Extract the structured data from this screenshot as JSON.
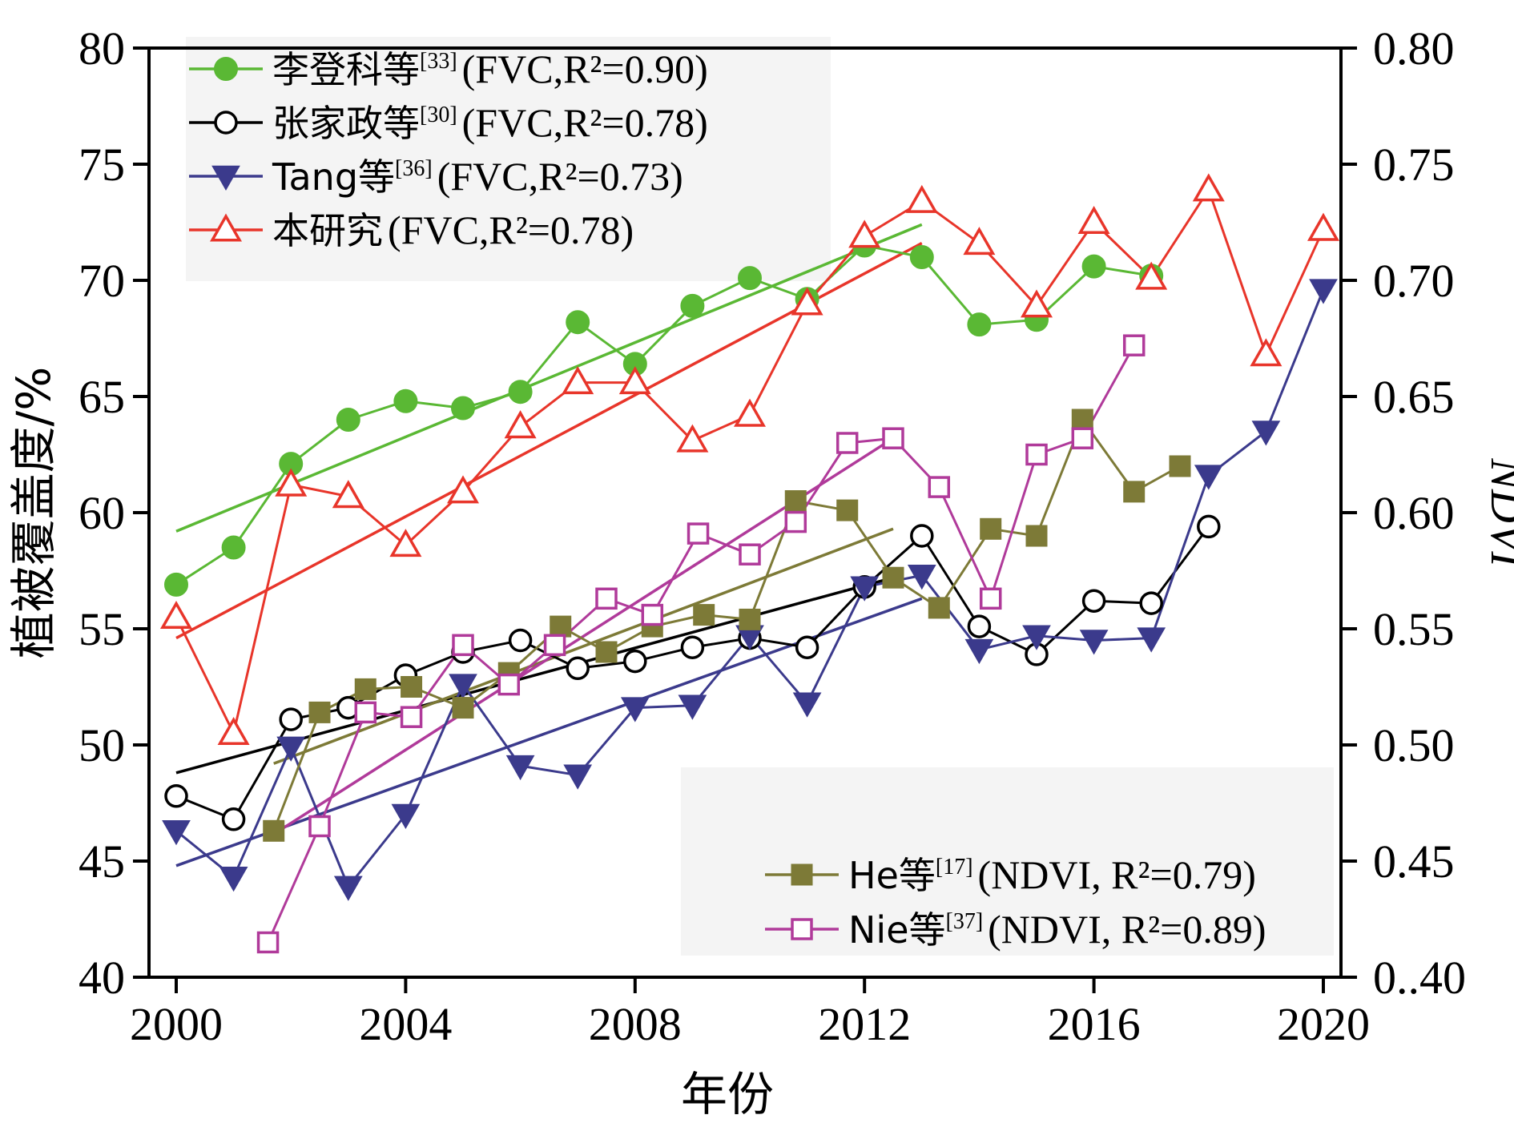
{
  "chart_data": {
    "type": "line",
    "xlabel": "年份",
    "ylabel_left": "植被覆盖度/%",
    "ylabel_right": "NDVI",
    "xlim": [
      2000,
      2020
    ],
    "ylim_left": [
      40,
      80
    ],
    "ylim_right": [
      0.4,
      0.8
    ],
    "x_ticks": [
      "2000",
      "2004",
      "2008",
      "2012",
      "2016",
      "2020"
    ],
    "y_ticks_left": [
      "40",
      "45",
      "50",
      "55",
      "60",
      "65",
      "70",
      "75",
      "80"
    ],
    "y_ticks_right": [
      "0..40",
      "0.45",
      "0.50",
      "0.55",
      "0.60",
      "0.65",
      "0.70",
      "0.75",
      "0.80"
    ],
    "grid": false,
    "legend_top_left": true,
    "legend_bottom_right": true,
    "series": [
      {
        "id": "li",
        "name_cjk": "李登科等",
        "ref": "[33]",
        "stat": "(FVC,R²=0.90)",
        "axis": "left",
        "color": "#5ab834",
        "marker": "circle-filled",
        "x": [
          2000,
          2001,
          2002,
          2003,
          2004,
          2005,
          2006,
          2007,
          2008,
          2009,
          2010,
          2011,
          2012,
          2013,
          2014,
          2015,
          2016,
          2017
        ],
        "values": [
          56.9,
          58.5,
          62.1,
          64.0,
          64.8,
          64.5,
          65.2,
          68.2,
          66.4,
          68.9,
          70.1,
          69.2,
          71.5,
          71.0,
          68.1,
          68.3,
          70.6,
          70.2
        ],
        "trend_x": [
          2000,
          2013
        ],
        "trend_y": [
          59.2,
          72.4
        ]
      },
      {
        "id": "zhang",
        "name_cjk": "张家政等",
        "ref": "[30]",
        "stat": "(FVC,R²=0.78)",
        "axis": "left",
        "color": "#000000",
        "marker": "circle-open",
        "x": [
          2000,
          2001,
          2002,
          2003,
          2004,
          2005,
          2006,
          2007,
          2008,
          2009,
          2010,
          2011,
          2012,
          2013,
          2014,
          2015,
          2016,
          2017,
          2018
        ],
        "values": [
          47.8,
          46.8,
          51.1,
          51.6,
          53.0,
          54.0,
          54.5,
          53.3,
          53.6,
          54.2,
          54.6,
          54.2,
          56.8,
          59.0,
          55.1,
          53.9,
          56.2,
          56.1,
          59.4
        ],
        "trend_x": [
          2000,
          2012.5
        ],
        "trend_y": [
          48.8,
          57.2
        ]
      },
      {
        "id": "tang",
        "name_cjk": "Tang等",
        "ref": "[36]",
        "stat": "(FVC,R²=0.73)",
        "axis": "left",
        "color": "#3b3a8c",
        "marker": "triangle-down-filled",
        "x": [
          2000,
          2001,
          2002,
          2003,
          2004,
          2005,
          2006,
          2007,
          2008,
          2009,
          2010,
          2011,
          2012,
          2013,
          2014,
          2015,
          2016,
          2017,
          2018,
          2019,
          2020
        ],
        "values": [
          46.3,
          44.3,
          49.9,
          43.9,
          47.0,
          52.6,
          49.1,
          48.7,
          51.6,
          51.7,
          54.7,
          51.8,
          56.8,
          57.3,
          54.1,
          54.7,
          54.5,
          54.6,
          61.6,
          63.5,
          69.6
        ],
        "trend_x": [
          2000,
          2013
        ],
        "trend_y": [
          44.8,
          56.3
        ]
      },
      {
        "id": "ben",
        "name_cjk": "本研究",
        "ref": "",
        "stat": "(FVC,R²=0.78)",
        "axis": "left",
        "color": "#e8352a",
        "marker": "triangle-up-open",
        "x": [
          2000,
          2001,
          2002,
          2003,
          2004,
          2005,
          2006,
          2007,
          2008,
          2009,
          2010,
          2011,
          2012,
          2013,
          2014,
          2015,
          2016,
          2017,
          2018,
          2019,
          2020
        ],
        "values": [
          55.5,
          50.5,
          61.2,
          60.7,
          58.6,
          60.9,
          63.7,
          65.6,
          65.6,
          63.1,
          64.2,
          69.0,
          71.9,
          73.4,
          71.6,
          68.9,
          72.5,
          70.1,
          73.9,
          66.8,
          72.2
        ],
        "trend_x": [
          2000,
          2013
        ],
        "trend_y": [
          54.6,
          71.6
        ]
      },
      {
        "id": "he",
        "name_cjk": "He等",
        "ref": "[17]",
        "stat": "(NDVI, R²=0.79)",
        "axis": "right",
        "color": "#7d7a37",
        "marker": "square-filled",
        "x": [
          2001.7,
          2002.5,
          2003.3,
          2004.1,
          2005.0,
          2005.8,
          2006.7,
          2007.5,
          2008.3,
          2009.2,
          2010.0,
          2010.8,
          2011.7,
          2012.5,
          2013.3,
          2014.2,
          2015.0,
          2015.8,
          2016.7,
          2017.5
        ],
        "values": [
          0.463,
          0.514,
          0.524,
          0.525,
          0.516,
          0.531,
          0.551,
          0.54,
          0.551,
          0.556,
          0.554,
          0.605,
          0.601,
          0.572,
          0.559,
          0.593,
          0.59,
          0.64,
          0.609,
          0.62
        ],
        "trend_x": [
          2001.7,
          2012.5
        ],
        "trend_y": [
          0.492,
          0.593
        ]
      },
      {
        "id": "nie",
        "name_cjk": "Nie等",
        "ref": "[37]",
        "stat": "(NDVI, R²=0.89)",
        "axis": "right",
        "color": "#b03a9a",
        "marker": "square-open",
        "x": [
          2001.6,
          2002.5,
          2003.3,
          2004.1,
          2005.0,
          2005.8,
          2006.6,
          2007.5,
          2008.3,
          2009.1,
          2010.0,
          2010.8,
          2011.7,
          2012.5,
          2013.3,
          2014.2,
          2015.0,
          2015.8,
          2016.7
        ],
        "values": [
          0.415,
          0.465,
          0.514,
          0.512,
          0.543,
          0.526,
          0.543,
          0.563,
          0.556,
          0.591,
          0.582,
          0.596,
          0.63,
          0.632,
          0.611,
          0.563,
          0.625,
          0.632,
          0.672
        ],
        "trend_x": [
          2001.6,
          2012.5
        ],
        "trend_y": [
          0.46,
          0.632
        ]
      }
    ]
  }
}
